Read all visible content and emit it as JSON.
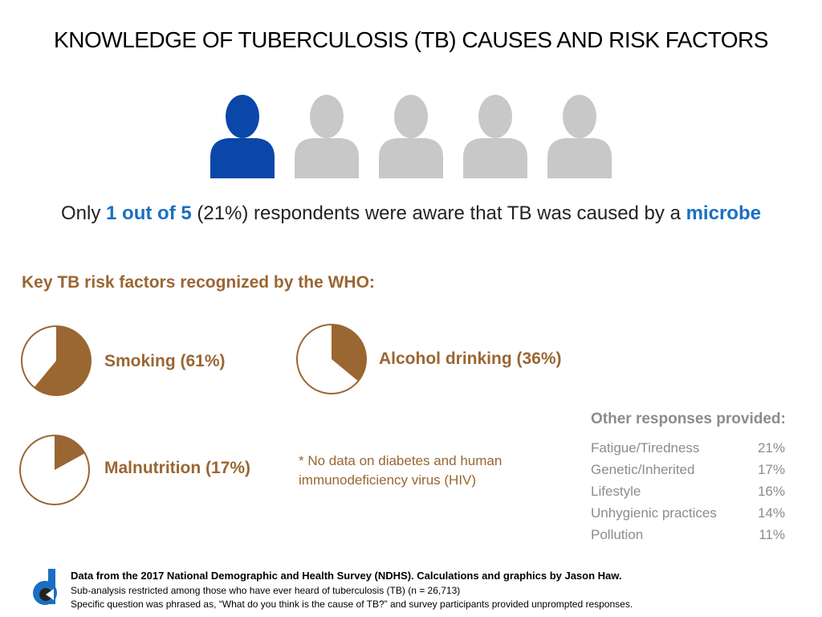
{
  "title": "KNOWLEDGE OF TUBERCULOSIS (TB) CAUSES AND RISK FACTORS",
  "icons": {
    "highlighted": 1,
    "total": 5,
    "highlight_color": "#0a47a8",
    "color": "#c8c8c8"
  },
  "headline": {
    "parts": [
      "Only ",
      "1 out of 5",
      " (21%) respondents were aware that TB was caused by a ",
      "microbe"
    ]
  },
  "subtitle": "Key TB risk factors recognized by the WHO:",
  "chart_data": [
    {
      "type": "pie",
      "label": "Smoking (61%)",
      "value": 61,
      "color": "#9a6632"
    },
    {
      "type": "pie",
      "label": "Alcohol drinking (36%)",
      "value": 36,
      "color": "#9a6632"
    },
    {
      "type": "pie",
      "label": "Malnutrition (17%)",
      "value": 17,
      "color": "#9a6632"
    }
  ],
  "note": "* No data on diabetes and human immunodeficiency virus (HIV)",
  "other_responses": {
    "title": "Other responses provided:",
    "rows": [
      [
        "Fatigue/Tiredness",
        "21%"
      ],
      [
        "Genetic/Inherited",
        "17%"
      ],
      [
        "Lifestyle",
        "16%"
      ],
      [
        "Unhygienic practices",
        "14%"
      ],
      [
        "Pollution",
        "11%"
      ]
    ]
  },
  "footer": [
    "Data from the 2017 National Demographic and Health Survey (NDHS). Calculations and graphics by Jason Haw.",
    "Sub-analysis restricted among those who have ever heard of tuberculosis (TB) (n = 26,713)",
    "Specific question was phrased as, “What do you think is the cause of TB?” and survey participants provided unprompted responses."
  ]
}
